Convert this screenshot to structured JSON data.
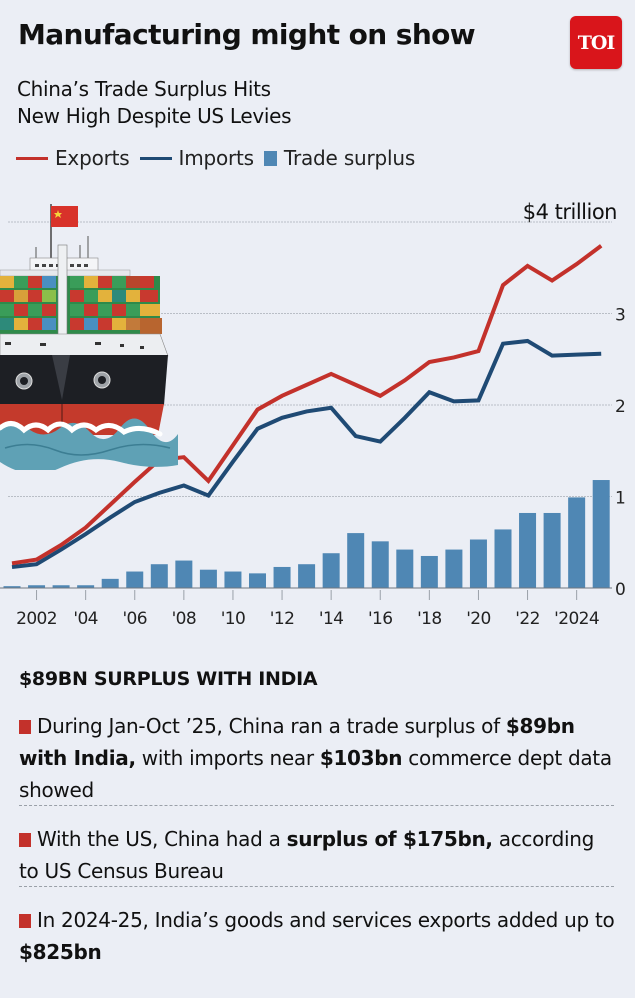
{
  "header": {
    "title": "Manufacturing might on show",
    "logo_text": "TOI",
    "subtitle_line1": "China’s Trade Surplus Hits",
    "subtitle_line2": "New High Despite US Levies"
  },
  "legend": {
    "exports": "Exports",
    "imports": "Imports",
    "surplus": "Trade surplus"
  },
  "colors": {
    "exports": "#c3312b",
    "imports": "#1f4a74",
    "surplus": "#4f87b4",
    "background": "#ebeef5",
    "logo": "#d9151b",
    "bullet_marker": "#c3312b"
  },
  "chart_data": {
    "type": "line",
    "title": "China’s Trade Surplus Hits New High Despite US Levies",
    "xlabel": "",
    "ylabel": "$ trillion",
    "top_label": "$4 trillion",
    "ylim": [
      0,
      4
    ],
    "yticks": [
      "0",
      "1",
      "2",
      "3",
      "$4 trillion"
    ],
    "grid": true,
    "legend_position": "top",
    "x": [
      2001,
      2002,
      2003,
      2004,
      2005,
      2006,
      2007,
      2008,
      2009,
      2010,
      2011,
      2012,
      2013,
      2014,
      2015,
      2016,
      2017,
      2018,
      2019,
      2020,
      2021,
      2022,
      2023,
      2024,
      2025
    ],
    "xtick_labels": [
      "2002",
      "'04",
      "'06",
      "'08",
      "'10",
      "'12",
      "'14",
      "'16",
      "'18",
      "'20",
      "'22",
      "'2024"
    ],
    "xtick_years": [
      2002,
      2004,
      2006,
      2008,
      2010,
      2012,
      2014,
      2016,
      2018,
      2020,
      2022,
      2024
    ],
    "series": [
      {
        "name": "Exports",
        "type": "line",
        "color": "#c3312b",
        "values": [
          0.27,
          0.31,
          0.47,
          0.66,
          0.91,
          1.16,
          1.4,
          1.43,
          1.17,
          1.56,
          1.95,
          2.1,
          2.22,
          2.34,
          2.22,
          2.1,
          2.27,
          2.47,
          2.52,
          2.59,
          3.31,
          3.52,
          3.36,
          3.54,
          3.74
        ]
      },
      {
        "name": "Imports",
        "type": "line",
        "color": "#1f4a74",
        "values": [
          0.23,
          0.26,
          0.42,
          0.59,
          0.77,
          0.94,
          1.04,
          1.12,
          1.01,
          1.38,
          1.74,
          1.86,
          1.93,
          1.97,
          1.66,
          1.6,
          1.86,
          2.14,
          2.04,
          2.05,
          2.67,
          2.7,
          2.54,
          2.55,
          2.56
        ]
      },
      {
        "name": "Trade surplus",
        "type": "bar",
        "color": "#4f87b4",
        "values": [
          0.02,
          0.03,
          0.03,
          0.03,
          0.1,
          0.18,
          0.26,
          0.3,
          0.2,
          0.18,
          0.16,
          0.23,
          0.26,
          0.38,
          0.6,
          0.51,
          0.42,
          0.35,
          0.42,
          0.53,
          0.64,
          0.82,
          0.82,
          0.99,
          1.18
        ]
      }
    ]
  },
  "facts": {
    "heading": "$89BN SURPLUS WITH INDIA",
    "bullets": [
      {
        "parts": [
          {
            "text": "During Jan-Oct ’25, China ran a trade surplus of ",
            "bold": false
          },
          {
            "text": "$89bn with India,",
            "bold": true
          },
          {
            "text": " with imports near ",
            "bold": false
          },
          {
            "text": "$103bn",
            "bold": true
          },
          {
            "text": " commerce dept data showed",
            "bold": false
          }
        ]
      },
      {
        "parts": [
          {
            "text": "With the US, China had a ",
            "bold": false
          },
          {
            "text": "surplus of $175bn,",
            "bold": true
          },
          {
            "text": " according to US Census Bureau",
            "bold": false
          }
        ]
      },
      {
        "parts": [
          {
            "text": "In 2024-25, India’s goods and services exports added up to ",
            "bold": false
          },
          {
            "text": "$825bn",
            "bold": true
          }
        ]
      }
    ]
  }
}
